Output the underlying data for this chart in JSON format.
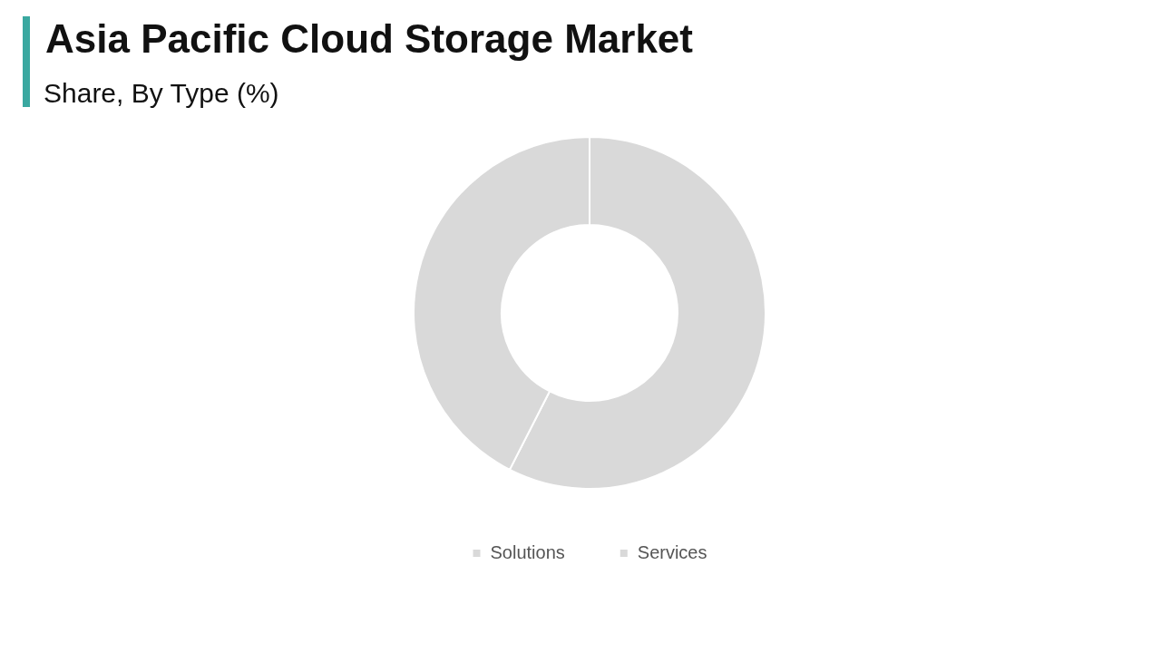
{
  "chart_data": {
    "type": "donut",
    "title": "Asia Pacific Cloud Storage Market",
    "subtitle": "Share, By Type (%)",
    "categories": [
      "Solutions",
      "Services"
    ],
    "values": [
      57.5,
      42.5
    ],
    "colors": [
      "#d9d9d9",
      "#d9d9d9"
    ],
    "legend": "bottom"
  }
}
